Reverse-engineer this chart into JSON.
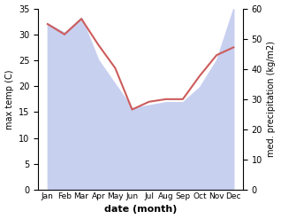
{
  "months": [
    "Jan",
    "Feb",
    "Mar",
    "Apr",
    "May",
    "Jun",
    "Jul",
    "Aug",
    "Sep",
    "Oct",
    "Nov",
    "Dec"
  ],
  "max_temp": [
    32,
    30,
    33,
    28,
    23.5,
    15.5,
    17,
    17.5,
    17.5,
    22,
    26,
    27.5
  ],
  "precipitation": [
    55,
    52,
    57,
    43,
    35,
    27,
    28,
    29,
    29,
    34,
    43,
    60
  ],
  "temp_color": "#cd5c5c",
  "precip_fill_color": "#c8d0f0",
  "ylabel_left": "max temp (C)",
  "ylabel_right": "med. precipitation (kg/m2)",
  "xlabel": "date (month)",
  "ylim_left": [
    0,
    35
  ],
  "ylim_right": [
    0,
    60
  ],
  "yticks_left": [
    0,
    5,
    10,
    15,
    20,
    25,
    30,
    35
  ],
  "yticks_right": [
    0,
    10,
    20,
    30,
    40,
    50,
    60
  ],
  "background_color": "#ffffff",
  "fig_bg_color": "#ffffff"
}
